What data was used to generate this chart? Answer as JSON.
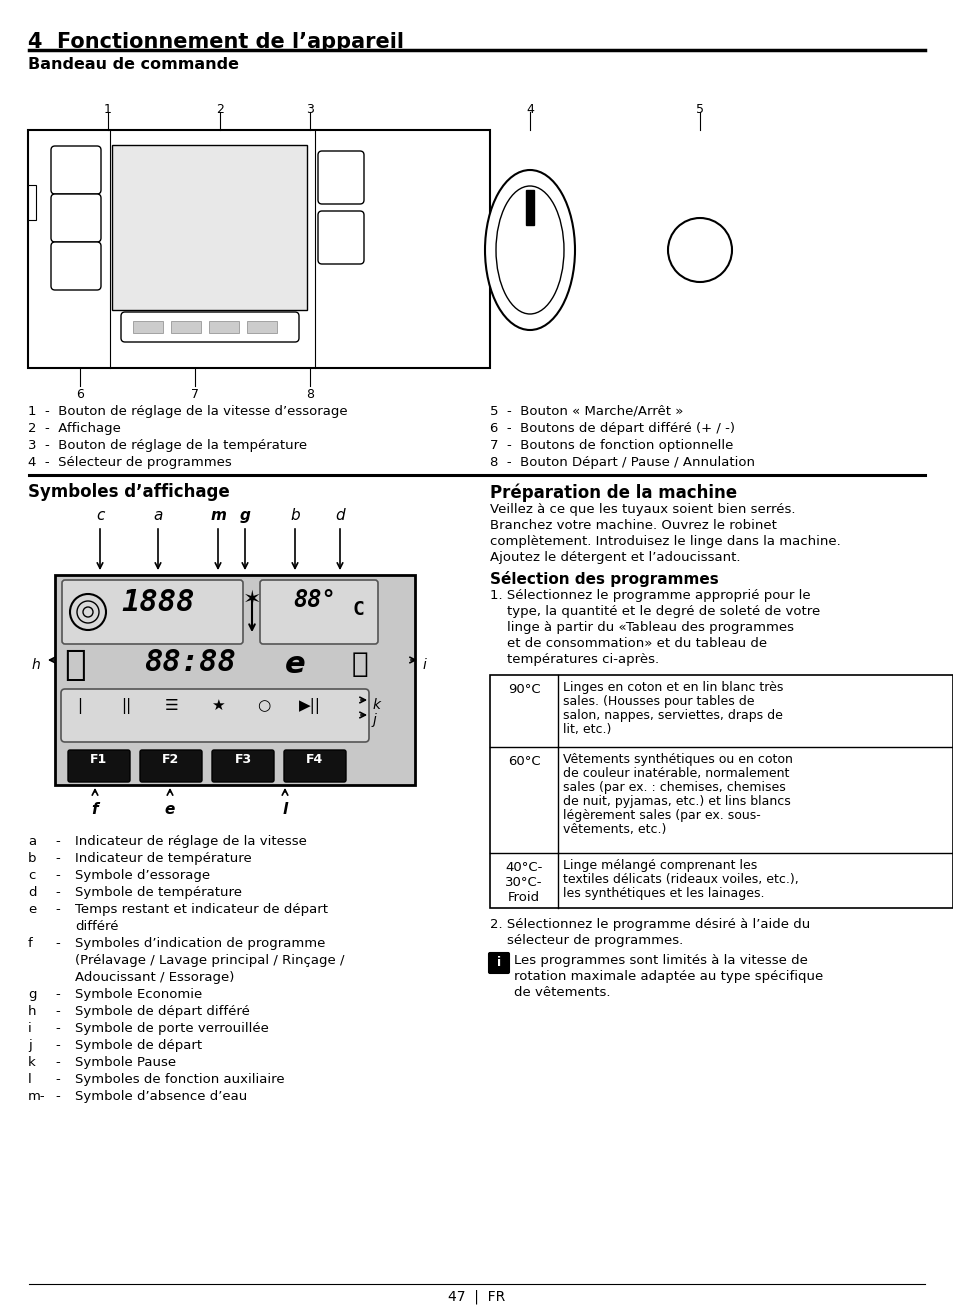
{
  "bg_color": "#ffffff",
  "title": "4  Fonctionnement de l’appareil",
  "subtitle": "Bandeau de commande",
  "items_left": [
    "1  -  Bouton de réglage de la vitesse d’essorage",
    "2  -  Affichage",
    "3  -  Bouton de réglage de la température",
    "4  -  Sélecteur de programmes"
  ],
  "items_right": [
    "5  -  Bouton « Marche/Arrêt »",
    "6  -  Boutons de départ différé (+ / -)",
    "7  -  Boutons de fonction optionnelle",
    "8  -  Bouton Départ / Pause / Annulation"
  ],
  "sym_title": "Symboles d’affichage",
  "prep_title": "Préparation de la machine",
  "prep_text": [
    "Veillez à ce que les tuyaux soient bien serrés.",
    "Branchez votre machine. Ouvrez le robinet",
    "complètement. Introduisez le linge dans la machine.",
    "Ajoutez le détergent et l’adoucissant."
  ],
  "sel_title": "Sélection des programmes",
  "sel_text": [
    "1. Sélectionnez le programme approprié pour le",
    "    type, la quantité et le degré de soleté de votre",
    "    linge à partir du «Tableau des programmes",
    "    et de consommation» et du tableau de",
    "    températures ci-après."
  ],
  "table_data": [
    [
      "90°C",
      "Linges en coton et en lin blanc très\nsales. (Housses pour tables de\nsalon, nappes, serviettes, draps de\nlit, etc.)"
    ],
    [
      "60°C",
      "Vêtements synthétiques ou en coton\nde couleur inatérable, normalement\nsales (par ex. : chemises, chemises\nde nuit, pyjamas, etc.) et lins blancs\nlégèrement sales (par ex. sous-\nvêtements, etc.)"
    ],
    [
      "40°C-\n30°C-\nFroid",
      "Linge mélangé comprenant les\ntextiles délicats (rideaux voiles, etc.),\nles synthétiques et les lainages."
    ]
  ],
  "sel_text2": [
    "2. Sélectionnez le programme désiré à l’aide du",
    "    sélecteur de programmes."
  ],
  "info_text": [
    "Les programmes sont limités à la vitesse de",
    "rotation maximale adaptée au type spécifique",
    "de vêtements."
  ],
  "sym_descs": [
    [
      "a",
      "Indicateur de réglage de la vitesse"
    ],
    [
      "b",
      "Indicateur de température"
    ],
    [
      "c",
      "Symbole d’essorage"
    ],
    [
      "d",
      "Symbole de température"
    ],
    [
      "e",
      "Temps restant et indicateur de départ\ndifféré"
    ],
    [
      "f",
      "Symboles d’indication de programme\n(Prélavage / Lavage principal / Rinçage /\nAdoucissant / Essorage)"
    ],
    [
      "g",
      "Symbole Economie"
    ],
    [
      "h",
      "Symbole de départ différé"
    ],
    [
      "i",
      "Symbole de porte verrouillée"
    ],
    [
      "j",
      "Symbole de départ"
    ],
    [
      "k",
      "Symbole Pause"
    ],
    [
      "l",
      "Symboles de fonction auxiliaire"
    ],
    [
      "m-",
      "Symbole d’absence d’eau"
    ]
  ]
}
